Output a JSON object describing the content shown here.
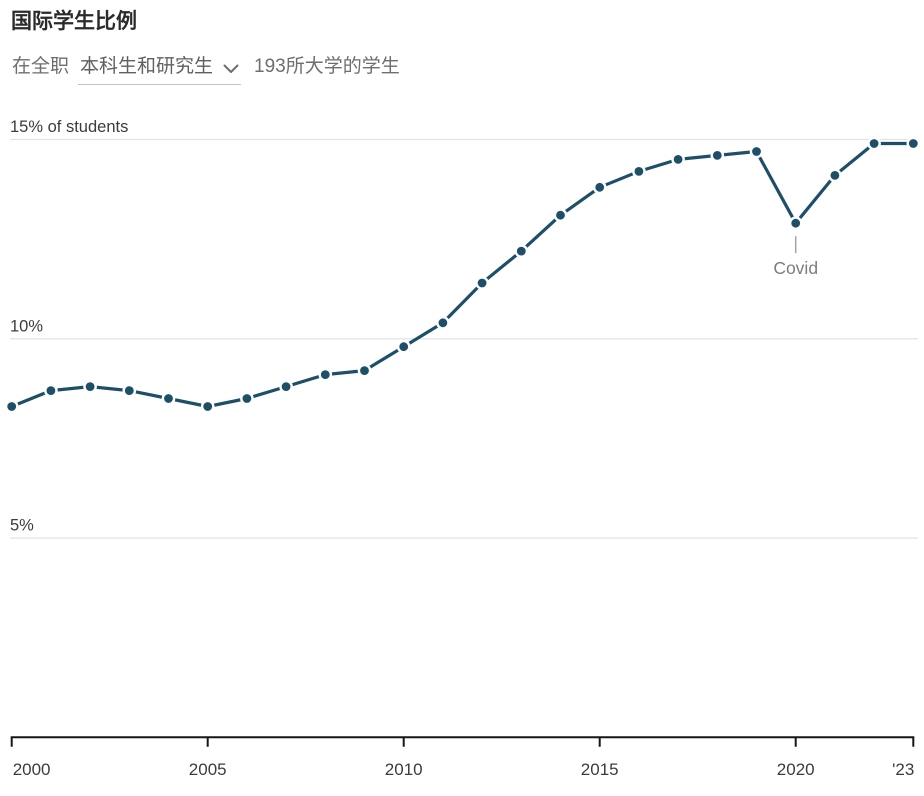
{
  "header": {
    "title": "国际学生比例",
    "subtitle_prefix": "在全职",
    "dropdown_value": "本科生和研究生",
    "subtitle_suffix": "193所大学的学生"
  },
  "chart_data": {
    "type": "line",
    "title": "国际学生比例",
    "x": [
      2000,
      2001,
      2002,
      2003,
      2004,
      2005,
      2006,
      2007,
      2008,
      2009,
      2010,
      2011,
      2012,
      2013,
      2014,
      2015,
      2016,
      2017,
      2018,
      2019,
      2020,
      2021,
      2022,
      2023
    ],
    "values": [
      8.3,
      8.7,
      8.8,
      8.7,
      8.5,
      8.3,
      8.5,
      8.8,
      9.1,
      9.2,
      9.8,
      10.4,
      11.4,
      12.2,
      13.1,
      13.8,
      14.2,
      14.5,
      14.6,
      14.7,
      12.9,
      14.1,
      14.9,
      14.9
    ],
    "ylabel": "% of students",
    "ylim": [
      0,
      15.5
    ],
    "xlim": [
      2000,
      2023
    ],
    "grid": "horizontal",
    "legend": "none",
    "y_ticks": [
      {
        "value": 15,
        "label": "15% of students"
      },
      {
        "value": 10,
        "label": "10%"
      },
      {
        "value": 5,
        "label": "5%"
      }
    ],
    "x_ticks": [
      {
        "value": 2000,
        "label": "2000",
        "align": "start"
      },
      {
        "value": 2005,
        "label": "2005",
        "align": "middle"
      },
      {
        "value": 2010,
        "label": "2010",
        "align": "middle"
      },
      {
        "value": 2015,
        "label": "2015",
        "align": "middle"
      },
      {
        "value": 2020,
        "label": "2020",
        "align": "middle"
      },
      {
        "value": 2023,
        "label": "'23",
        "align": "end"
      }
    ],
    "annotations": [
      {
        "x": 2020,
        "label": "Covid"
      }
    ],
    "colors": {
      "line": "#1e4f68",
      "grid": "#e3e3e3",
      "axis": "#161616",
      "tick_label": "#3c3c3c",
      "annotation_text": "#7d7d7d",
      "annotation_line": "#a3a3a3",
      "dot_halo": "#ffffff"
    }
  }
}
